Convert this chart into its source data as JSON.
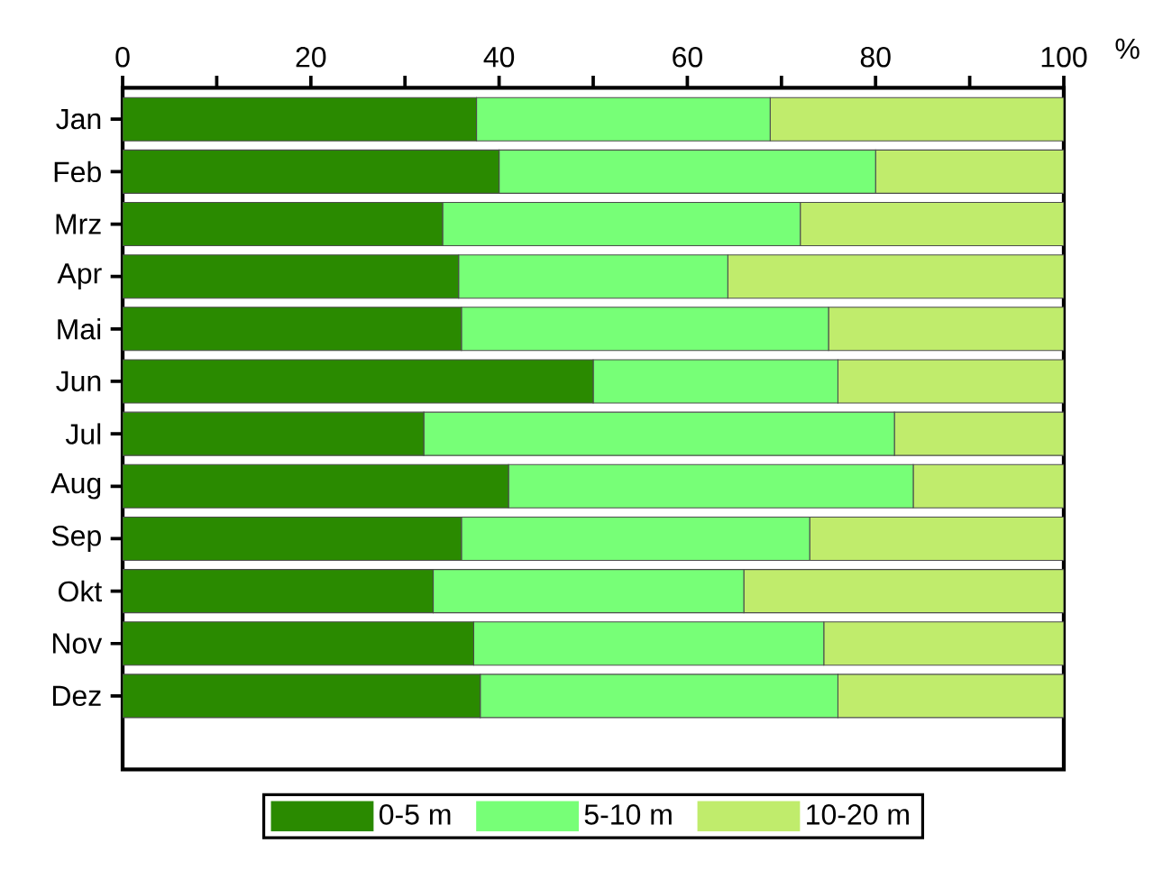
{
  "chart_data": {
    "type": "bar",
    "orientation": "horizontal",
    "stacked": true,
    "xlabel": "%",
    "categories": [
      "Jan",
      "Feb",
      "Mrz",
      "Apr",
      "Mai",
      "Jun",
      "Jul",
      "Aug",
      "Sep",
      "Okt",
      "Nov",
      "Dez"
    ],
    "series": [
      {
        "name": "0-5 m",
        "color": "#2a8a00",
        "values": [
          37.6,
          40,
          34,
          35.7,
          36,
          50,
          32,
          41,
          36,
          33,
          37.3,
          38
        ]
      },
      {
        "name": "5-10 m",
        "color": "#77ff77",
        "values": [
          31.2,
          40,
          38,
          28.6,
          39,
          26,
          50,
          43,
          37,
          33,
          37.2,
          38
        ]
      },
      {
        "name": "10-20 m",
        "color": "#c0ec6c",
        "values": [
          31.2,
          20,
          28,
          35.7,
          25,
          24,
          18,
          16,
          27,
          34,
          25.5,
          24
        ]
      }
    ],
    "xlim": [
      0,
      100
    ],
    "xticks": [
      0,
      {
        "value": 10,
        "label": null
      },
      20,
      {
        "value": 30,
        "label": null
      },
      40,
      {
        "value": 50,
        "label": null
      },
      60,
      {
        "value": 70,
        "label": null
      },
      80,
      {
        "value": 90,
        "label": null
      },
      100
    ],
    "legend": "bottom"
  }
}
